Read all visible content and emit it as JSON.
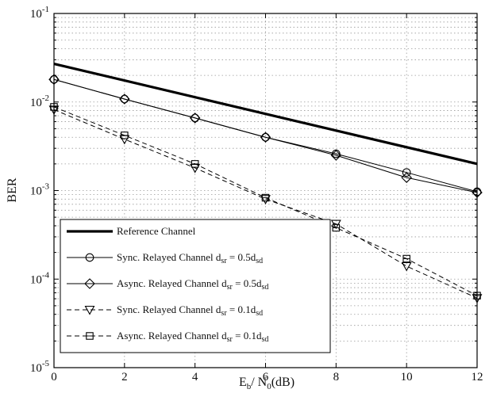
{
  "chart_data": {
    "type": "line",
    "xlabel": "E_b / N_0(dB)",
    "ylabel": "BER",
    "xlim": [
      0,
      12
    ],
    "ylim": [
      1e-05,
      0.1
    ],
    "yscale": "log",
    "grid": true,
    "legend_position": "bottom-left",
    "xticks": [
      0,
      2,
      4,
      6,
      8,
      10,
      12
    ],
    "xtick_labels": [
      "0",
      "2",
      "4",
      "6",
      "8",
      "10",
      "12"
    ],
    "yticks": [
      1e-05,
      0.0001,
      0.001,
      0.01,
      0.1
    ],
    "ytick_labels": [
      {
        "base": "10",
        "exp": "-5"
      },
      {
        "base": "10",
        "exp": "-4"
      },
      {
        "base": "10",
        "exp": "-3"
      },
      {
        "base": "10",
        "exp": "-2"
      },
      {
        "base": "10",
        "exp": "-1"
      }
    ],
    "series": [
      {
        "name": "Reference Channel",
        "x": [
          0,
          12
        ],
        "y": [
          0.027,
          0.002
        ],
        "style": "thick-solid",
        "marker": "none",
        "color": "#000000"
      },
      {
        "name": "Sync. Relayed Channel d_sr = 0.5d_sd",
        "x": [
          0,
          2,
          4,
          6,
          8,
          10,
          12
        ],
        "y": [
          0.018,
          0.0108,
          0.0066,
          0.004,
          0.0026,
          0.0016,
          0.00097
        ],
        "style": "solid",
        "marker": "circle",
        "color": "#000000"
      },
      {
        "name": "Async. Relayed Channel d_sr = 0.5d_sd",
        "x": [
          0,
          2,
          4,
          6,
          8,
          10,
          12
        ],
        "y": [
          0.018,
          0.0108,
          0.0066,
          0.004,
          0.0025,
          0.0014,
          0.00095
        ],
        "style": "solid",
        "marker": "diamond",
        "color": "#000000"
      },
      {
        "name": "Sync. Relayed Channel d_sr = 0.1d_sd",
        "x": [
          0,
          2,
          4,
          6,
          8,
          10,
          12
        ],
        "y": [
          0.0082,
          0.0038,
          0.0018,
          0.0008,
          0.00042,
          0.00014,
          6.1e-05
        ],
        "style": "dashed",
        "marker": "triangle-down",
        "color": "#000000"
      },
      {
        "name": "Async. Relayed Channel d_sr = 0.1d_sd",
        "x": [
          0,
          2,
          4,
          6,
          8,
          10,
          12
        ],
        "y": [
          0.0088,
          0.0042,
          0.002,
          0.00083,
          0.00038,
          0.00017,
          6.5e-05
        ],
        "style": "dashed",
        "marker": "square",
        "color": "#000000"
      }
    ]
  },
  "legend": {
    "entries": [
      {
        "pre": "Reference Channel",
        "sub1": "",
        "mid": "",
        "sub2": ""
      },
      {
        "pre": "Sync. Relayed Channel d",
        "sub1": "sr",
        "mid": " = 0.5d",
        "sub2": "sd"
      },
      {
        "pre": "Async. Relayed Channel d",
        "sub1": "sr",
        "mid": " = 0.5d",
        "sub2": "sd"
      },
      {
        "pre": "Sync. Relayed Channel d",
        "sub1": "sr",
        "mid": " = 0.1d",
        "sub2": "sd"
      },
      {
        "pre": "Async. Relayed Channel d",
        "sub1": "sr",
        "mid": " = 0.1d",
        "sub2": "sd"
      }
    ]
  },
  "axis_labels": {
    "x": {
      "e": "E",
      "b": "b",
      "slash": "/ N",
      "zero": "0",
      "unit": "(dB)"
    },
    "y": "BER"
  }
}
